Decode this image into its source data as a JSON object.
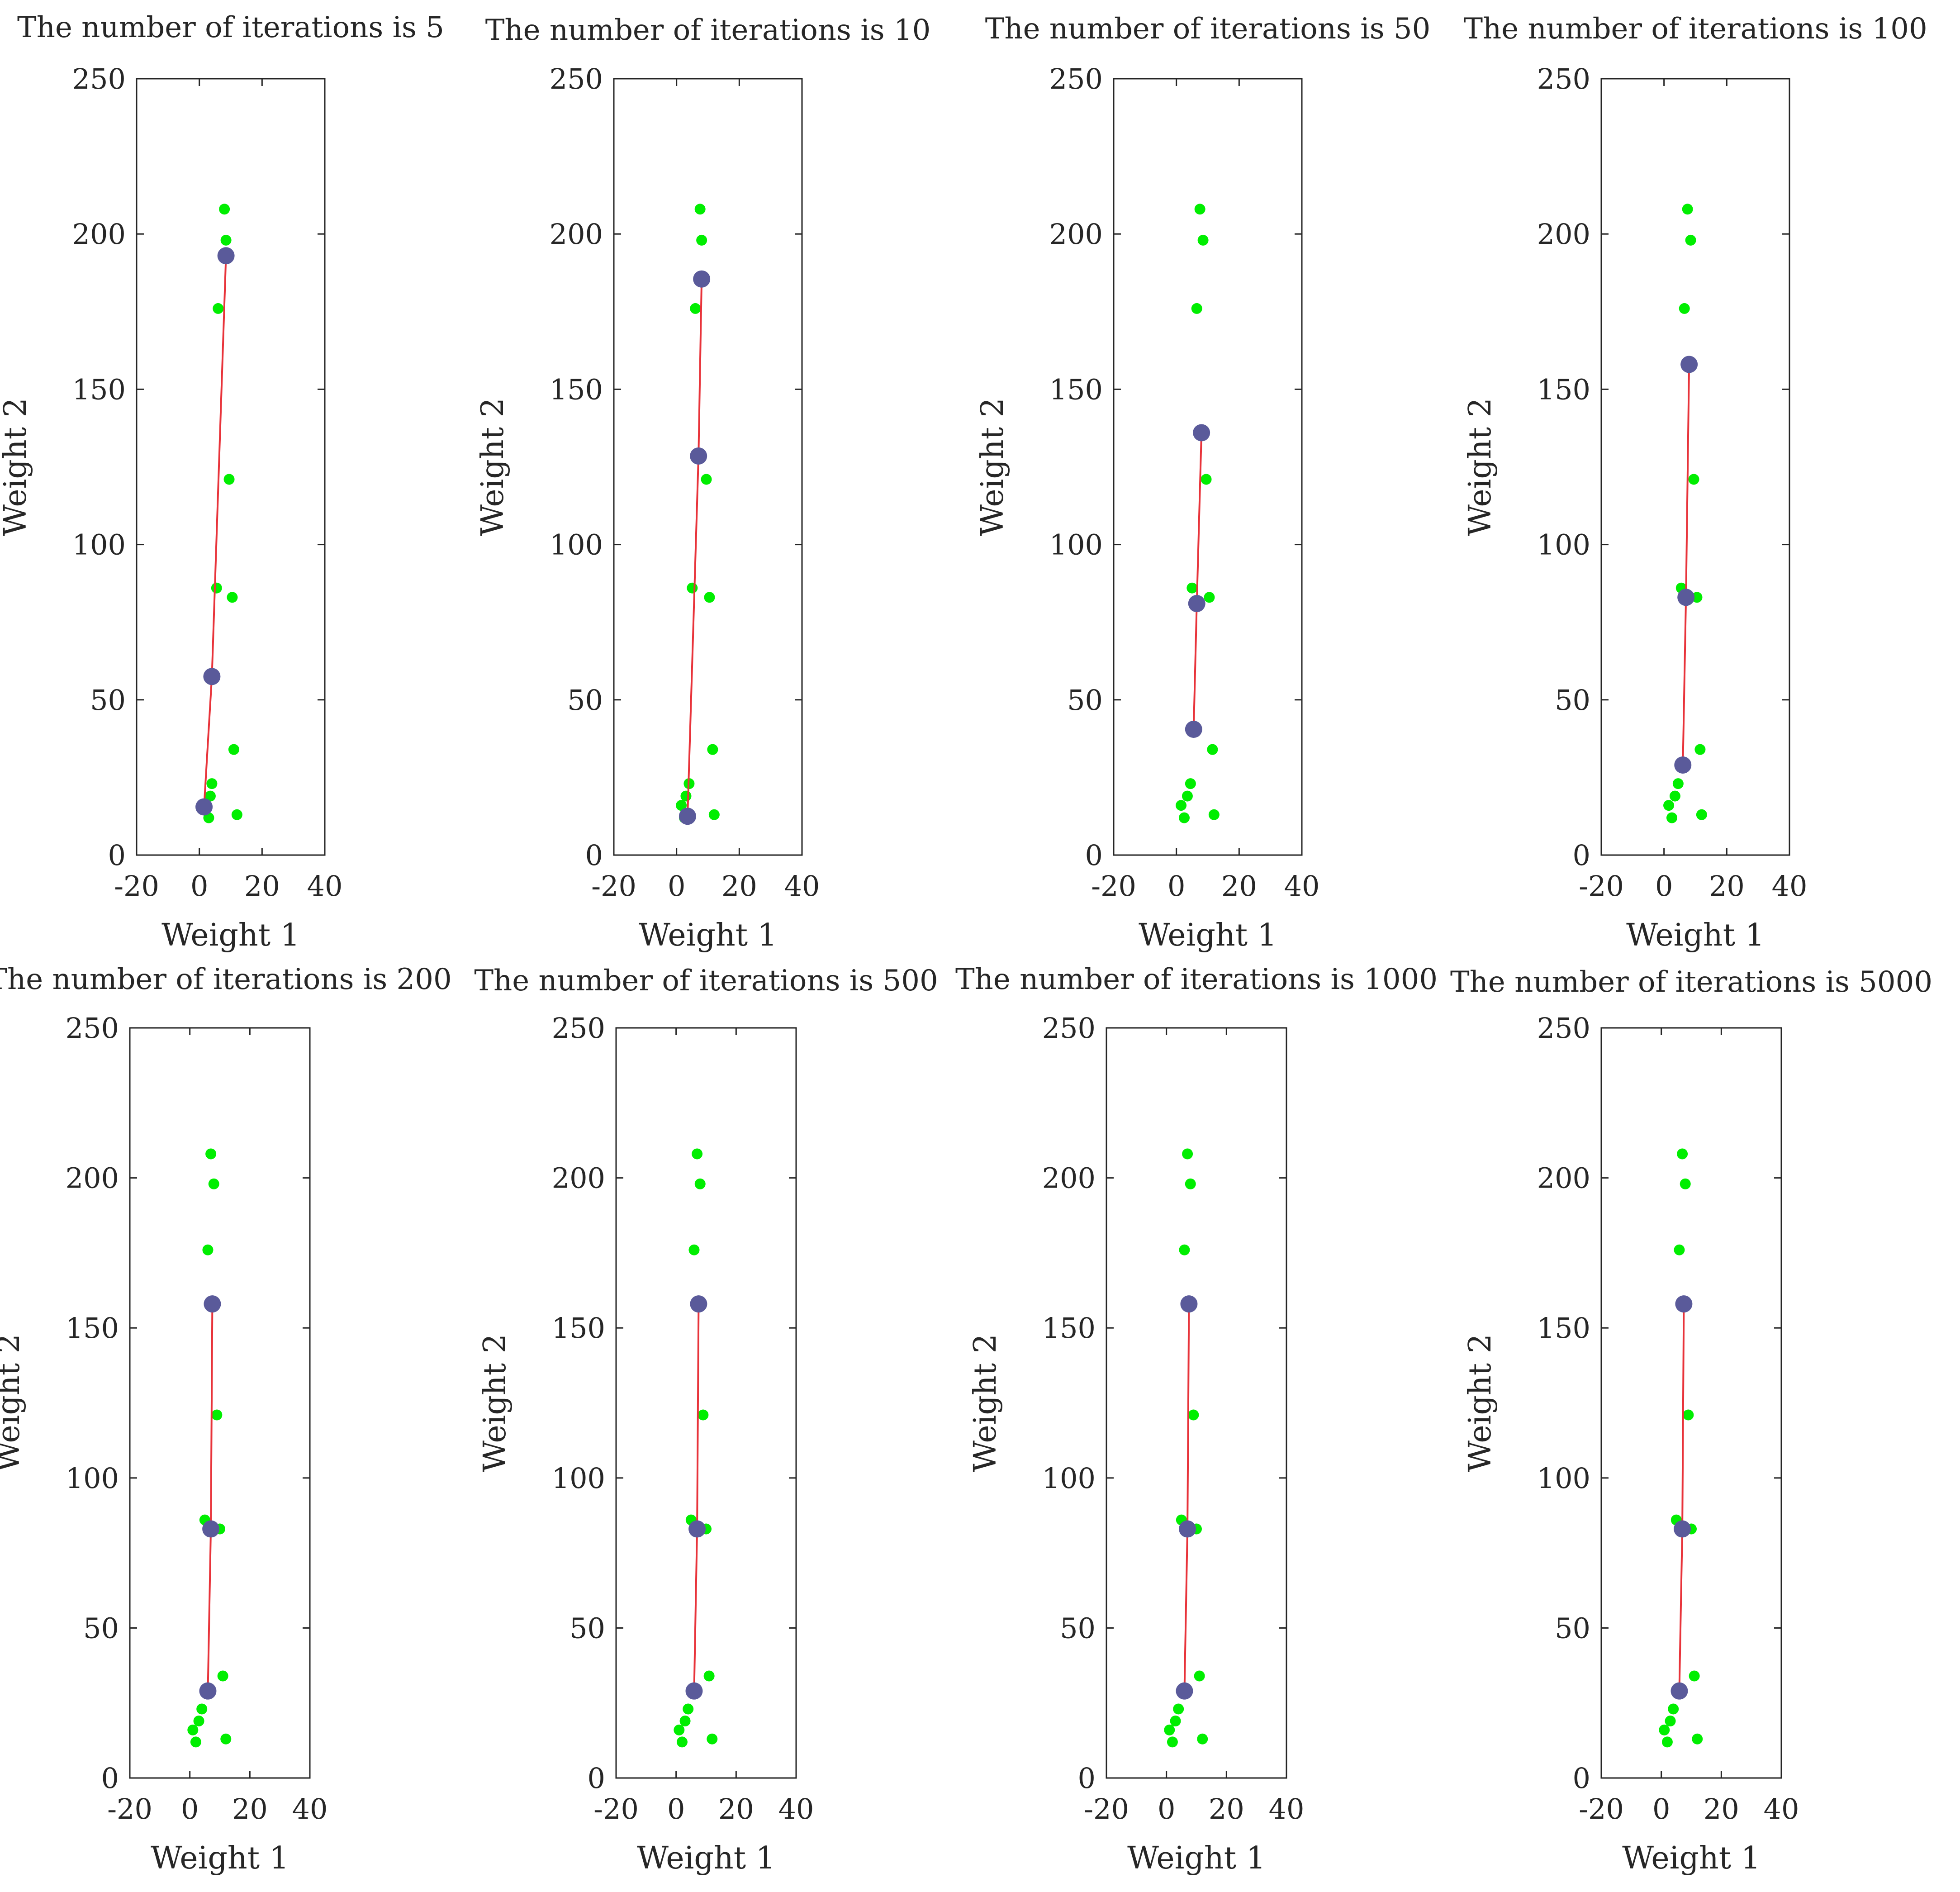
{
  "chart_data": [
    {
      "type": "scatter",
      "title": "The number of iterations is 5",
      "xlabel": "Weight 1",
      "ylabel": "Weight 2",
      "xlim": [
        -20,
        40
      ],
      "ylim": [
        0,
        250
      ],
      "xticks": [
        "-20",
        "0",
        "20",
        "40"
      ],
      "yticks": [
        "0",
        "50",
        "100",
        "150",
        "200",
        "250"
      ],
      "series": [
        {
          "name": "data points",
          "color": "#00ee00",
          "x": [
            8,
            8.5,
            6,
            9.5,
            5.5,
            10.5,
            11,
            4,
            3.5,
            2,
            3,
            12
          ],
          "y": [
            208,
            198,
            176,
            121,
            86,
            83,
            34,
            23,
            19,
            16,
            12,
            13
          ]
        },
        {
          "name": "neurons",
          "color": "#5a5a9a",
          "line_color": "#e8333a",
          "x": [
            8.5,
            4,
            1.5
          ],
          "y": [
            193,
            57.5,
            15.5
          ]
        }
      ]
    },
    {
      "type": "scatter",
      "title": "The number of iterations is 10",
      "xlabel": "Weight 1",
      "ylabel": "Weight 2",
      "xlim": [
        -20,
        40
      ],
      "ylim": [
        0,
        250
      ],
      "xticks": [
        "-20",
        "0",
        "20",
        "40"
      ],
      "yticks": [
        "0",
        "50",
        "100",
        "150",
        "200",
        "250"
      ],
      "series": [
        {
          "name": "data points",
          "color": "#00ee00",
          "x": [
            7.5,
            8,
            6,
            9.5,
            5,
            10.5,
            11.5,
            4,
            3,
            1.5,
            2.5,
            12
          ],
          "y": [
            208,
            198,
            176,
            121,
            86,
            83,
            34,
            23,
            19,
            16,
            12,
            13
          ]
        },
        {
          "name": "neurons",
          "color": "#5a5a9a",
          "line_color": "#e8333a",
          "x": [
            8,
            7,
            3.5
          ],
          "y": [
            185.5,
            128.5,
            12.5
          ]
        }
      ]
    },
    {
      "type": "scatter",
      "title": "The number of iterations is 50",
      "xlabel": "Weight 1",
      "ylabel": "Weight 2",
      "xlim": [
        -20,
        40
      ],
      "ylim": [
        0,
        250
      ],
      "xticks": [
        "-20",
        "0",
        "20",
        "40"
      ],
      "yticks": [
        "0",
        "50",
        "100",
        "150",
        "200",
        "250"
      ],
      "series": [
        {
          "name": "data points",
          "color": "#00ee00",
          "x": [
            7.5,
            8.5,
            6.5,
            9.5,
            5,
            10.5,
            11.5,
            4.5,
            3.5,
            1.5,
            2.5,
            12
          ],
          "y": [
            208,
            198,
            176,
            121,
            86,
            83,
            34,
            23,
            19,
            16,
            12,
            13
          ]
        },
        {
          "name": "neurons",
          "color": "#5a5a9a",
          "line_color": "#e8333a",
          "x": [
            8,
            6.5,
            5.5
          ],
          "y": [
            136,
            81,
            40.5
          ]
        }
      ]
    },
    {
      "type": "scatter",
      "title": "The number of iterations is 100",
      "xlabel": "Weight 1",
      "ylabel": "Weight 2",
      "xlim": [
        -20,
        40
      ],
      "ylim": [
        0,
        250
      ],
      "xticks": [
        "-20",
        "0",
        "20",
        "40"
      ],
      "yticks": [
        "0",
        "50",
        "100",
        "150",
        "200",
        "250"
      ],
      "series": [
        {
          "name": "data points",
          "color": "#00ee00",
          "x": [
            7.5,
            8.5,
            6.5,
            9.5,
            5.5,
            10.5,
            11.5,
            4.5,
            3.5,
            1.5,
            2.5,
            12
          ],
          "y": [
            208,
            198,
            176,
            121,
            86,
            83,
            34,
            23,
            19,
            16,
            12,
            13
          ]
        },
        {
          "name": "neurons",
          "color": "#5a5a9a",
          "line_color": "#e8333a",
          "x": [
            8,
            7,
            6
          ],
          "y": [
            158,
            83,
            29
          ]
        }
      ]
    },
    {
      "type": "scatter",
      "title": "The number of iterations is 200",
      "xlabel": "Weight 1",
      "ylabel": "Weight 2",
      "xlim": [
        -20,
        40
      ],
      "ylim": [
        0,
        250
      ],
      "xticks": [
        "-20",
        "0",
        "20",
        "40"
      ],
      "yticks": [
        "0",
        "50",
        "100",
        "150",
        "200",
        "250"
      ],
      "series": [
        {
          "name": "data points",
          "color": "#00ee00",
          "x": [
            7,
            8,
            6,
            9,
            5,
            10,
            11,
            4,
            3,
            1,
            2,
            12
          ],
          "y": [
            208,
            198,
            176,
            121,
            86,
            83,
            34,
            23,
            19,
            16,
            12,
            13
          ]
        },
        {
          "name": "neurons",
          "color": "#5a5a9a",
          "line_color": "#e8333a",
          "x": [
            7.5,
            7,
            6
          ],
          "y": [
            158,
            83,
            29
          ]
        }
      ]
    },
    {
      "type": "scatter",
      "title": "The number of iterations is 500",
      "xlabel": "Weight 1",
      "ylabel": "Weight 2",
      "xlim": [
        -20,
        40
      ],
      "ylim": [
        0,
        250
      ],
      "xticks": [
        "-20",
        "0",
        "20",
        "40"
      ],
      "yticks": [
        "0",
        "50",
        "100",
        "150",
        "200",
        "250"
      ],
      "series": [
        {
          "name": "data points",
          "color": "#00ee00",
          "x": [
            7,
            8,
            6,
            9,
            5,
            10,
            11,
            4,
            3,
            1,
            2,
            12
          ],
          "y": [
            208,
            198,
            176,
            121,
            86,
            83,
            34,
            23,
            19,
            16,
            12,
            13
          ]
        },
        {
          "name": "neurons",
          "color": "#5a5a9a",
          "line_color": "#e8333a",
          "x": [
            7.5,
            7,
            6
          ],
          "y": [
            158,
            83,
            29
          ]
        }
      ]
    },
    {
      "type": "scatter",
      "title": "The number of iterations is 1000",
      "xlabel": "Weight 1",
      "ylabel": "Weight 2",
      "xlim": [
        -20,
        40
      ],
      "ylim": [
        0,
        250
      ],
      "xticks": [
        "-20",
        "0",
        "20",
        "40"
      ],
      "yticks": [
        "0",
        "50",
        "100",
        "150",
        "200",
        "250"
      ],
      "series": [
        {
          "name": "data points",
          "color": "#00ee00",
          "x": [
            7,
            8,
            6,
            9,
            5,
            10,
            11,
            4,
            3,
            1,
            2,
            12
          ],
          "y": [
            208,
            198,
            176,
            121,
            86,
            83,
            34,
            23,
            19,
            16,
            12,
            13
          ]
        },
        {
          "name": "neurons",
          "color": "#5a5a9a",
          "line_color": "#e8333a",
          "x": [
            7.5,
            7,
            6
          ],
          "y": [
            158,
            83,
            29
          ]
        }
      ]
    },
    {
      "type": "scatter",
      "title": "The number of iterations is 5000",
      "xlabel": "Weight 1",
      "ylabel": "Weight 2",
      "xlim": [
        -20,
        40
      ],
      "ylim": [
        0,
        250
      ],
      "xticks": [
        "-20",
        "0",
        "20",
        "40"
      ],
      "yticks": [
        "0",
        "50",
        "100",
        "150",
        "200",
        "250"
      ],
      "series": [
        {
          "name": "data points",
          "color": "#00ee00",
          "x": [
            7,
            8,
            6,
            9,
            5,
            10,
            11,
            4,
            3,
            1,
            2,
            12
          ],
          "y": [
            208,
            198,
            176,
            121,
            86,
            83,
            34,
            23,
            19,
            16,
            12,
            13
          ]
        },
        {
          "name": "neurons",
          "color": "#5a5a9a",
          "line_color": "#e8333a",
          "x": [
            7.5,
            7,
            6
          ],
          "y": [
            158,
            83,
            29
          ]
        }
      ]
    }
  ]
}
